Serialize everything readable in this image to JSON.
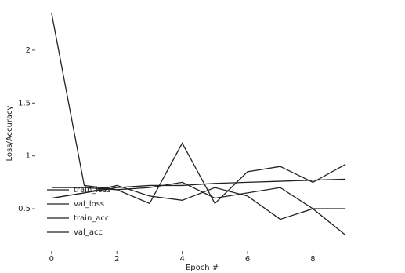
{
  "chart_data": {
    "type": "line",
    "x_label": "Epoch #",
    "y_label": "Loss/Accuracy",
    "x": [
      0,
      1,
      2,
      3,
      4,
      5,
      6,
      7,
      8,
      9
    ],
    "series": [
      {
        "name": "train_loss",
        "color": "#222222",
        "values": [
          2.35,
          0.72,
          0.68,
          0.7,
          0.75,
          0.6,
          0.65,
          0.7,
          0.5,
          0.25
        ]
      },
      {
        "name": "val_loss",
        "color": "#222222",
        "values": [
          0.7,
          0.7,
          0.68,
          0.55,
          1.12,
          0.55,
          0.85,
          0.9,
          0.75,
          0.92
        ]
      },
      {
        "name": "train_acc",
        "color": "#222222",
        "values": [
          0.6,
          0.65,
          0.7,
          0.72,
          0.72,
          0.74,
          0.75,
          0.76,
          0.77,
          0.78
        ]
      },
      {
        "name": "val_acc",
        "color": "#222222",
        "values": [
          0.6,
          0.65,
          0.72,
          0.62,
          0.58,
          0.7,
          0.62,
          0.4,
          0.5,
          0.5
        ]
      }
    ],
    "xlim": [
      -0.5,
      9.5
    ],
    "ylim": [
      0.1,
      2.4
    ],
    "xticks": [
      0,
      2,
      4,
      6,
      8
    ],
    "yticks": [
      0.5,
      1.0,
      1.5,
      2.0
    ],
    "legend": "left"
  }
}
